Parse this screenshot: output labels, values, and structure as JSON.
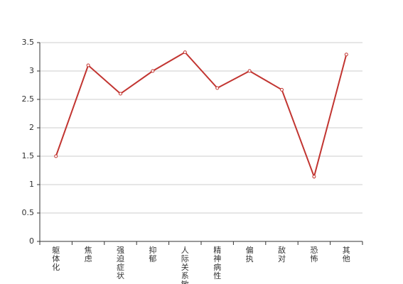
{
  "chart_data": {
    "type": "line",
    "categories": [
      "躯体化",
      "焦虑",
      "强迫症状",
      "抑郁",
      "人际关系敏感",
      "精神病性",
      "偏执",
      "敌对",
      "恐怖",
      "其他"
    ],
    "series": [
      {
        "color": "#c23531",
        "values": [
          1.5,
          3.1,
          2.6,
          3.0,
          3.33,
          2.7,
          3.0,
          2.67,
          1.14,
          3.29
        ]
      }
    ],
    "ylim": [
      0,
      3.5
    ],
    "yticks": [
      0,
      0.5,
      1,
      1.5,
      2,
      2.5,
      3,
      3.5
    ],
    "grid": true
  }
}
